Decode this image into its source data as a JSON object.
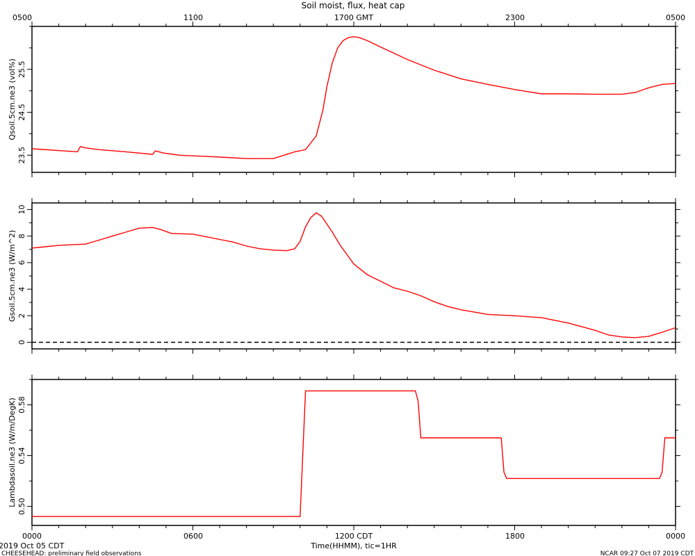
{
  "chart_data": {
    "title": "Soil moist, flux, heat cap",
    "type": "line",
    "top_axis": {
      "label_suffix": "GMT",
      "tick_labels": [
        "0500",
        "1100",
        "1700 GMT",
        "2300",
        "0500"
      ]
    },
    "bottom_axis": {
      "xlabel": "Time(HHMM), tic=1HR",
      "tick_labels": [
        "0000",
        "0600",
        "1200 CDT",
        "1800",
        "0000"
      ],
      "xlim_hours": [
        0,
        24
      ]
    },
    "panels": [
      {
        "ylabel": "Qsoil.5cm.ne3 (vol%)",
        "ylim": [
          23.1,
          26.5
        ],
        "yticks": [
          "23.5",
          "24.5",
          "25.5"
        ],
        "ytick_values": [
          23.5,
          24.5,
          25.5
        ],
        "series": [
          {
            "color": "#ff0000",
            "x": [
              0,
              1.7,
              1.8,
              2.0,
              2.5,
              3.5,
              4.5,
              4.6,
              4.9,
              5.5,
              6.5,
              7.5,
              8.0,
              9.0,
              9.8,
              10.2,
              10.6,
              10.85,
              11.0,
              11.2,
              11.4,
              11.6,
              11.8,
              12.0,
              12.2,
              12.5,
              13.0,
              14.0,
              15.0,
              16.0,
              17.0,
              18.0,
              19.0,
              20.0,
              21.0,
              22.0,
              22.5,
              23.0,
              23.5,
              24.0
            ],
            "y": [
              23.65,
              23.58,
              23.7,
              23.67,
              23.63,
              23.58,
              23.52,
              23.6,
              23.55,
              23.5,
              23.47,
              23.44,
              23.42,
              23.42,
              23.58,
              23.63,
              23.95,
              24.55,
              25.1,
              25.65,
              26.0,
              26.17,
              26.24,
              26.26,
              26.24,
              26.17,
              26.02,
              25.73,
              25.48,
              25.28,
              25.15,
              25.03,
              24.93,
              24.93,
              24.92,
              24.92,
              24.96,
              25.07,
              25.15,
              25.17
            ]
          }
        ]
      },
      {
        "ylabel": "Gsoil.5cm.ne3 (W/m^2)",
        "ylim": [
          -0.5,
          10.5
        ],
        "yticks": [
          "0",
          "2",
          "4",
          "6",
          "8",
          "10"
        ],
        "ytick_values": [
          0,
          2,
          4,
          6,
          8,
          10
        ],
        "zero_line": true,
        "series": [
          {
            "color": "#ff0000",
            "x": [
              0,
              0.5,
              1.0,
              1.5,
              2.0,
              2.5,
              3.0,
              3.5,
              4.0,
              4.5,
              4.8,
              5.2,
              6.0,
              6.5,
              7.0,
              7.5,
              8.0,
              8.5,
              9.0,
              9.5,
              9.8,
              10.0,
              10.2,
              10.4,
              10.6,
              10.8,
              11.0,
              11.2,
              11.5,
              12.0,
              12.5,
              13.0,
              13.5,
              14.0,
              14.5,
              15.0,
              15.5,
              16.0,
              17.0,
              18.0,
              19.0,
              20.0,
              21.0,
              21.5,
              22.0,
              22.5,
              23.0,
              23.5,
              24.0
            ],
            "y": [
              7.1,
              7.2,
              7.3,
              7.35,
              7.4,
              7.7,
              8.0,
              8.3,
              8.6,
              8.65,
              8.5,
              8.2,
              8.15,
              7.95,
              7.75,
              7.55,
              7.25,
              7.05,
              6.95,
              6.9,
              7.05,
              7.6,
              8.7,
              9.4,
              9.75,
              9.5,
              8.9,
              8.3,
              7.3,
              5.9,
              5.1,
              4.6,
              4.1,
              3.85,
              3.5,
              3.05,
              2.7,
              2.45,
              2.1,
              2.0,
              1.85,
              1.45,
              0.9,
              0.55,
              0.4,
              0.35,
              0.45,
              0.75,
              1.1
            ]
          }
        ]
      },
      {
        "ylabel": "Lambdasoil.ne3 (W/m/DegK)",
        "ylim": [
          0.485,
          0.6
        ],
        "yticks": [
          "0.50",
          "0.54",
          "0.58"
        ],
        "ytick_values": [
          0.5,
          0.54,
          0.58
        ],
        "series": [
          {
            "color": "#ff0000",
            "x": [
              0,
              10.0,
              10.2,
              14.3,
              14.4,
              14.5,
              17.5,
              17.6,
              17.7,
              23.4,
              23.5,
              23.6,
              24.0
            ],
            "y": [
              0.492,
              0.492,
              0.591,
              0.591,
              0.583,
              0.554,
              0.554,
              0.527,
              0.522,
              0.522,
              0.527,
              0.554,
              0.554
            ]
          }
        ]
      }
    ]
  },
  "footer": {
    "left_date": "2019 Oct 05 CDT",
    "left_project": "CHEESEHEAD: preliminary field observations",
    "right_stamp": "NCAR 09:27 Oct 07 2019 CDT"
  }
}
